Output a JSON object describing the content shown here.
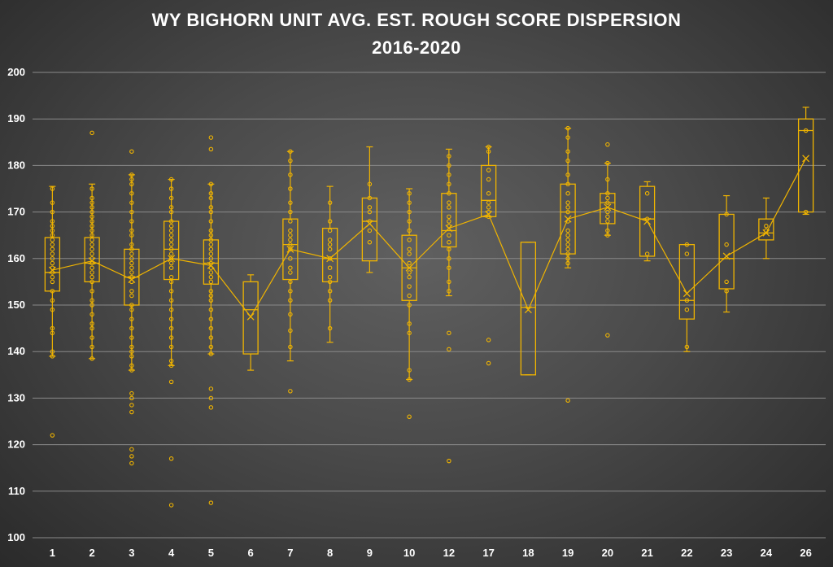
{
  "chart_data": {
    "type": "box",
    "title": "WY BIGHORN UNIT AVG. EST. ROUGH SCORE DISPERSION",
    "subtitle": "2016-2020",
    "xlabel": "",
    "ylabel": "",
    "ylim": [
      100,
      200
    ],
    "yticks": [
      100,
      110,
      120,
      130,
      140,
      150,
      160,
      170,
      180,
      190,
      200
    ],
    "grid": true,
    "color": "#f0b400",
    "categories": [
      "1",
      "2",
      "3",
      "4",
      "5",
      "6",
      "7",
      "8",
      "9",
      "10",
      "12",
      "17",
      "18",
      "19",
      "20",
      "21",
      "22",
      "23",
      "24",
      "26"
    ],
    "boxes": [
      {
        "min": 139,
        "q1": 153,
        "median": 157,
        "q3": 164.5,
        "max": 175.5,
        "mean": 157.5,
        "points": [
          122,
          139,
          140,
          144,
          145,
          149,
          151,
          153,
          155,
          156,
          157,
          158,
          159,
          160,
          161,
          162,
          163,
          164,
          165,
          166,
          167,
          168,
          170,
          172,
          175
        ]
      },
      {
        "min": 138.5,
        "q1": 155,
        "median": 159,
        "q3": 164.5,
        "max": 176,
        "mean": 159.5,
        "points": [
          138.5,
          141,
          143,
          145,
          146,
          148,
          150,
          151,
          153,
          155,
          156,
          157,
          158,
          159,
          160,
          161,
          162,
          163,
          164,
          165,
          166,
          167,
          168,
          169,
          170,
          171,
          172,
          173,
          175,
          187
        ]
      },
      {
        "min": 136,
        "q1": 150,
        "median": 156,
        "q3": 162,
        "max": 178,
        "mean": 155.5,
        "points": [
          116,
          117.5,
          119,
          127,
          128.5,
          130,
          131,
          136,
          137,
          139,
          140,
          141,
          143,
          145,
          147,
          149,
          150,
          152,
          153,
          155,
          156,
          157,
          158,
          159,
          160,
          161,
          162,
          163,
          165,
          166,
          168,
          170,
          172,
          174,
          176,
          177,
          178,
          183
        ]
      },
      {
        "min": 137,
        "q1": 155.5,
        "median": 162,
        "q3": 168,
        "max": 177,
        "mean": 160,
        "points": [
          107,
          117,
          133.5,
          137,
          138,
          141,
          143,
          145,
          147,
          149,
          151,
          153,
          155,
          156,
          158,
          159,
          160,
          161,
          162,
          163,
          164,
          165,
          166,
          167,
          168,
          170,
          171,
          173,
          175,
          177
        ]
      },
      {
        "min": 139.5,
        "q1": 154.5,
        "median": 159,
        "q3": 164,
        "max": 176,
        "mean": 158.5,
        "points": [
          107.5,
          128,
          130,
          132,
          139.5,
          141,
          143,
          145,
          147,
          149,
          151,
          152,
          153,
          155,
          156,
          157,
          158,
          159,
          160,
          161,
          162,
          163,
          164,
          165,
          166,
          168,
          170,
          171,
          173,
          174,
          176,
          183.5,
          186
        ]
      },
      {
        "min": 136,
        "q1": 139.5,
        "median": 149,
        "q3": 155,
        "max": 156.5,
        "mean": 147.5,
        "points": []
      },
      {
        "min": 138,
        "q1": 155.5,
        "median": 163,
        "q3": 168.5,
        "max": 183,
        "mean": 162,
        "points": [
          131.5,
          141,
          144.5,
          148,
          151,
          153,
          155,
          157,
          158,
          160,
          162,
          163,
          164,
          165,
          166,
          168,
          170,
          172,
          175,
          178,
          181,
          183
        ]
      },
      {
        "min": 142,
        "q1": 155,
        "median": 160,
        "q3": 166.5,
        "max": 175.5,
        "mean": 160,
        "points": [
          145,
          151,
          153,
          155,
          156,
          158,
          160,
          162,
          163,
          164,
          166,
          168,
          172
        ]
      },
      {
        "min": 157,
        "q1": 159.5,
        "median": 168,
        "q3": 173,
        "max": 184,
        "mean": 167.5,
        "points": [
          163.5,
          166,
          168,
          170,
          171,
          173,
          176
        ]
      },
      {
        "min": 134,
        "q1": 151,
        "median": 158,
        "q3": 165,
        "max": 175,
        "mean": 158,
        "points": [
          126,
          134,
          136,
          144,
          146,
          150,
          152,
          154,
          156,
          157,
          159,
          161,
          162,
          164,
          166,
          168,
          170,
          172,
          174
        ]
      },
      {
        "min": 152,
        "q1": 162.5,
        "median": 166,
        "q3": 174,
        "max": 183.5,
        "mean": 166.5,
        "points": [
          116.5,
          140.5,
          144,
          153,
          155,
          158,
          160,
          162,
          163.5,
          165,
          167,
          168,
          169,
          171,
          172,
          174,
          176,
          178,
          180,
          182
        ]
      },
      {
        "min": 169,
        "q1": 169,
        "median": 172.5,
        "q3": 180,
        "max": 184,
        "mean": 169.5,
        "points": [
          137.5,
          142.5,
          169,
          170,
          171,
          172,
          174,
          177,
          179,
          183,
          184
        ]
      },
      {
        "min": 135,
        "q1": 135,
        "median": 149.5,
        "q3": 163.5,
        "max": 163.5,
        "mean": 149,
        "points": []
      },
      {
        "min": 158,
        "q1": 161,
        "median": 170,
        "q3": 176,
        "max": 188,
        "mean": 168.5,
        "points": [
          129.5,
          159,
          160,
          161,
          162,
          163,
          164,
          165,
          166,
          168,
          170,
          171,
          172,
          174,
          176,
          178,
          181,
          183,
          186,
          188
        ]
      },
      {
        "min": 165,
        "q1": 167.5,
        "median": 172,
        "q3": 174,
        "max": 180.5,
        "mean": 171,
        "points": [
          143.5,
          165,
          166,
          168,
          169,
          170,
          172,
          173,
          174,
          177,
          180.5,
          184.5
        ]
      },
      {
        "min": 159.5,
        "q1": 160.5,
        "median": 168.5,
        "q3": 175.5,
        "max": 176.5,
        "mean": 168,
        "points": [
          161,
          168.5,
          174
        ]
      },
      {
        "min": 140,
        "q1": 147,
        "median": 151,
        "q3": 163,
        "max": 163,
        "mean": 152.5,
        "points": [
          141,
          149,
          151,
          161,
          163
        ]
      },
      {
        "min": 148.5,
        "q1": 153.5,
        "median": 160,
        "q3": 169.5,
        "max": 173.5,
        "mean": 160.5,
        "points": [
          153,
          155,
          163,
          169.5
        ]
      },
      {
        "min": 160,
        "q1": 164,
        "median": 165.5,
        "q3": 168.5,
        "max": 173,
        "mean": 165.5,
        "points": [
          166,
          167
        ]
      },
      {
        "min": 169.5,
        "q1": 170,
        "median": 187.5,
        "q3": 190,
        "max": 192.5,
        "mean": 181.5,
        "points": [
          170,
          187.5
        ]
      }
    ]
  }
}
